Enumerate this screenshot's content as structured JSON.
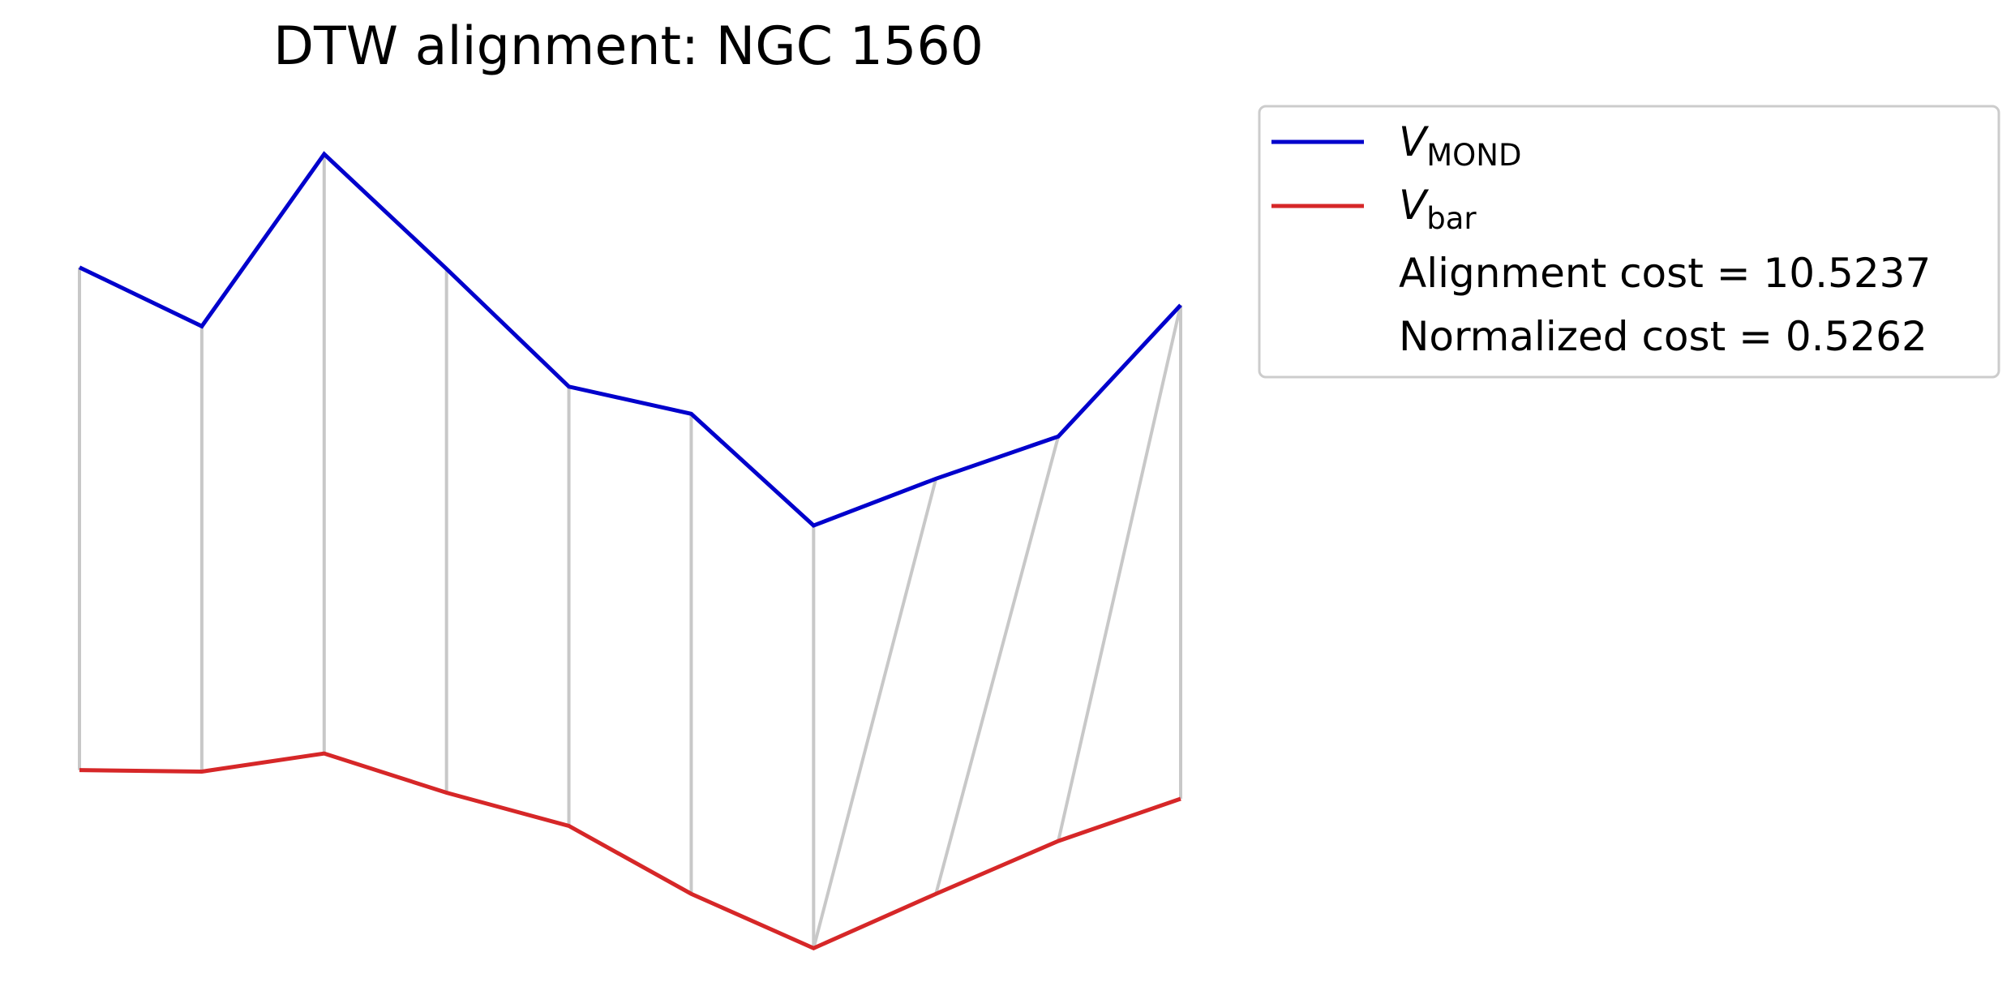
{
  "chart_data": {
    "type": "line",
    "title": "DTW alignment: NGC 1560",
    "axes_visible": false,
    "grid": false,
    "legend_position": "outside-top-right",
    "x": [
      0,
      1,
      2,
      3,
      4,
      5,
      6,
      7,
      8,
      9
    ],
    "ylim": [
      -0.5,
      6.0
    ],
    "series": [
      {
        "id": "mond",
        "name_main": "V",
        "name_sub": "MOND",
        "color": "#0000cc",
        "values": [
          4.39,
          4.0,
          5.14,
          4.38,
          3.6,
          3.42,
          2.68,
          2.99,
          3.27,
          4.14
        ]
      },
      {
        "id": "bar",
        "name_main": "V",
        "name_sub": "bar",
        "color": "#d62728",
        "values": [
          1.06,
          1.05,
          1.17,
          0.91,
          0.69,
          0.24,
          -0.12,
          0.24,
          0.59,
          0.87
        ]
      }
    ],
    "alignment_color": "#c8c8c8",
    "alignment_pairs": [
      [
        0,
        0
      ],
      [
        1,
        1
      ],
      [
        2,
        2
      ],
      [
        3,
        3
      ],
      [
        4,
        4
      ],
      [
        5,
        5
      ],
      [
        6,
        6
      ],
      [
        7,
        6
      ],
      [
        8,
        7
      ],
      [
        9,
        8
      ],
      [
        9,
        9
      ]
    ],
    "annotations": [
      "Alignment cost = 10.5237",
      "Normalized cost = 0.5262"
    ]
  }
}
